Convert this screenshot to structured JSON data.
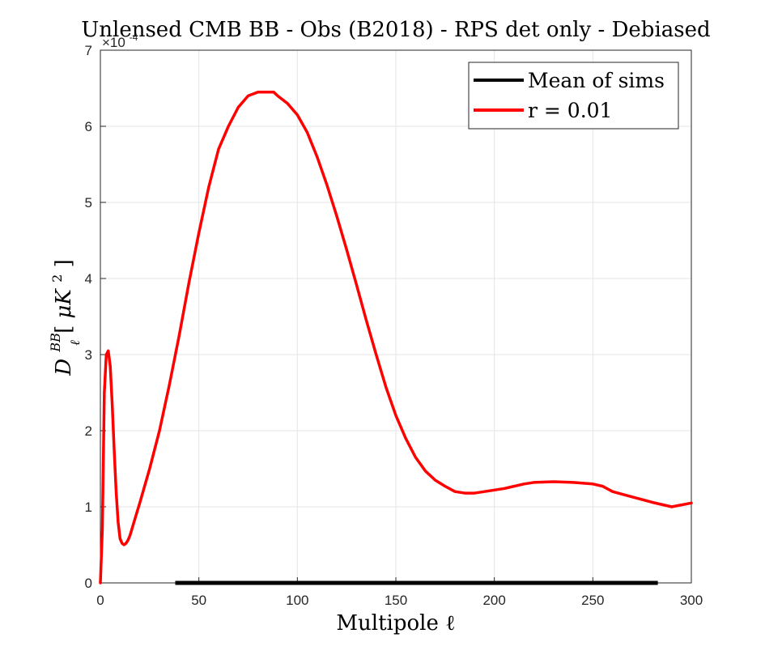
{
  "chart_data": {
    "type": "line",
    "title": "Unlensed CMB BB - Obs (B2018) - RPS det only - Debiased",
    "xlabel": "Multipole ℓ",
    "ylabel": {
      "base": "D",
      "superscript": "BB",
      "subscript": "ℓ",
      "unit_open": " [",
      "unit_body": "μK",
      "unit_power": "2",
      "unit_close": "]"
    },
    "y_exponent": {
      "base": "×10",
      "power": "-4"
    },
    "xlim": [
      0,
      300
    ],
    "ylim": [
      0,
      7
    ],
    "x_ticks": [
      "0",
      "50",
      "100",
      "150",
      "200",
      "250",
      "300"
    ],
    "y_ticks": [
      "0",
      "1",
      "2",
      "3",
      "4",
      "5",
      "6",
      "7"
    ],
    "grid": true,
    "legend": {
      "placement": "top-right",
      "entries": [
        {
          "label": "Mean of sims",
          "color": "#000000"
        },
        {
          "label": "r = 0.01",
          "color": "#ff0000"
        }
      ]
    },
    "series": [
      {
        "name": "Mean of sims",
        "color": "#000000",
        "x": [
          38,
          100,
          150,
          200,
          250,
          283
        ],
        "y": [
          0,
          0,
          0,
          0,
          0,
          0
        ]
      },
      {
        "name": "r = 0.01",
        "color": "#ff0000",
        "x": [
          0,
          1,
          2,
          3,
          4,
          5,
          6,
          7,
          8,
          9,
          10,
          11,
          12,
          13,
          14,
          15,
          18,
          20,
          25,
          30,
          35,
          40,
          45,
          50,
          55,
          60,
          65,
          70,
          75,
          80,
          85,
          88,
          90,
          95,
          100,
          105,
          110,
          115,
          120,
          125,
          130,
          135,
          140,
          145,
          150,
          155,
          160,
          165,
          170,
          175,
          180,
          185,
          190,
          195,
          200,
          205,
          210,
          215,
          220,
          230,
          240,
          250,
          255,
          260,
          270,
          280,
          290,
          300
        ],
        "y": [
          0,
          0.7,
          2.5,
          3.0,
          3.05,
          2.85,
          2.35,
          1.75,
          1.2,
          0.8,
          0.58,
          0.52,
          0.5,
          0.52,
          0.56,
          0.62,
          0.88,
          1.05,
          1.5,
          2.0,
          2.6,
          3.25,
          3.95,
          4.6,
          5.2,
          5.7,
          6.0,
          6.25,
          6.4,
          6.45,
          6.45,
          6.45,
          6.4,
          6.3,
          6.15,
          5.92,
          5.6,
          5.23,
          4.82,
          4.38,
          3.92,
          3.45,
          3.0,
          2.57,
          2.2,
          1.9,
          1.65,
          1.47,
          1.35,
          1.27,
          1.2,
          1.18,
          1.18,
          1.2,
          1.22,
          1.24,
          1.27,
          1.3,
          1.32,
          1.33,
          1.32,
          1.3,
          1.27,
          1.2,
          1.13,
          1.06,
          1.0,
          1.05
        ]
      }
    ]
  }
}
